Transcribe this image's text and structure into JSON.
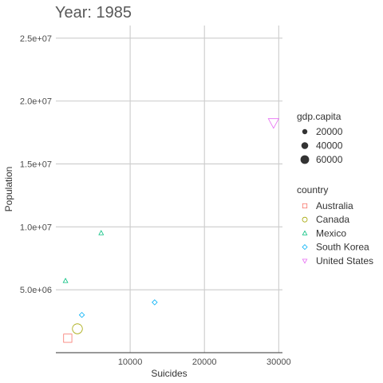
{
  "chart_data": {
    "type": "scatter",
    "title": "Year: 1985",
    "xlabel": "Suicides",
    "ylabel": "Population",
    "xlim": [
      0,
      30500
    ],
    "ylim": [
      0,
      26000000
    ],
    "x_ticks": [
      10000,
      20000,
      30000
    ],
    "x_tick_labels": [
      "10000",
      "20000",
      "30000"
    ],
    "y_ticks": [
      5000000,
      10000000,
      15000000,
      20000000,
      25000000
    ],
    "y_tick_labels": [
      "5.0e+06",
      "1.0e+07",
      "1.5e+07",
      "2.0e+07",
      "2.5e+07"
    ],
    "grid": true,
    "legend_position": "right",
    "size_legend": {
      "title": "gdp.capita",
      "values": [
        20000,
        40000,
        60000
      ],
      "labels": [
        "20000",
        "40000",
        "60000"
      ]
    },
    "color_legend": {
      "title": "country",
      "entries": [
        {
          "label": "Australia",
          "shape": "square",
          "color": "#F8766D"
        },
        {
          "label": "Canada",
          "shape": "circle",
          "color": "#A3A500"
        },
        {
          "label": "Mexico",
          "shape": "triangle",
          "color": "#00BF7D"
        },
        {
          "label": "South Korea",
          "shape": "diamond",
          "color": "#00B0F6"
        },
        {
          "label": "United States",
          "shape": "triangle-down",
          "color": "#E76BF3"
        }
      ]
    },
    "series": [
      {
        "name": "Australia",
        "shape": "square",
        "color": "#F8766D",
        "points": [
          {
            "x": 1600,
            "y": 1150000,
            "gdp": 13000
          }
        ]
      },
      {
        "name": "Canada",
        "shape": "circle",
        "color": "#A3A500",
        "points": [
          {
            "x": 2900,
            "y": 1900000,
            "gdp": 15000
          }
        ]
      },
      {
        "name": "Mexico",
        "shape": "triangle",
        "color": "#00BF7D",
        "points": [
          {
            "x": 1300,
            "y": 5700000,
            "gdp": 2500
          },
          {
            "x": 6100,
            "y": 9500000,
            "gdp": 2500
          }
        ]
      },
      {
        "name": "South Korea",
        "shape": "diamond",
        "color": "#00B0F6",
        "points": [
          {
            "x": 3500,
            "y": 3000000,
            "gdp": 2700
          },
          {
            "x": 13300,
            "y": 4000000,
            "gdp": 2700
          }
        ]
      },
      {
        "name": "United States",
        "shape": "triangle-down",
        "color": "#E76BF3",
        "points": [
          {
            "x": 29300,
            "y": 18300000,
            "gdp": 19000
          }
        ]
      }
    ]
  }
}
